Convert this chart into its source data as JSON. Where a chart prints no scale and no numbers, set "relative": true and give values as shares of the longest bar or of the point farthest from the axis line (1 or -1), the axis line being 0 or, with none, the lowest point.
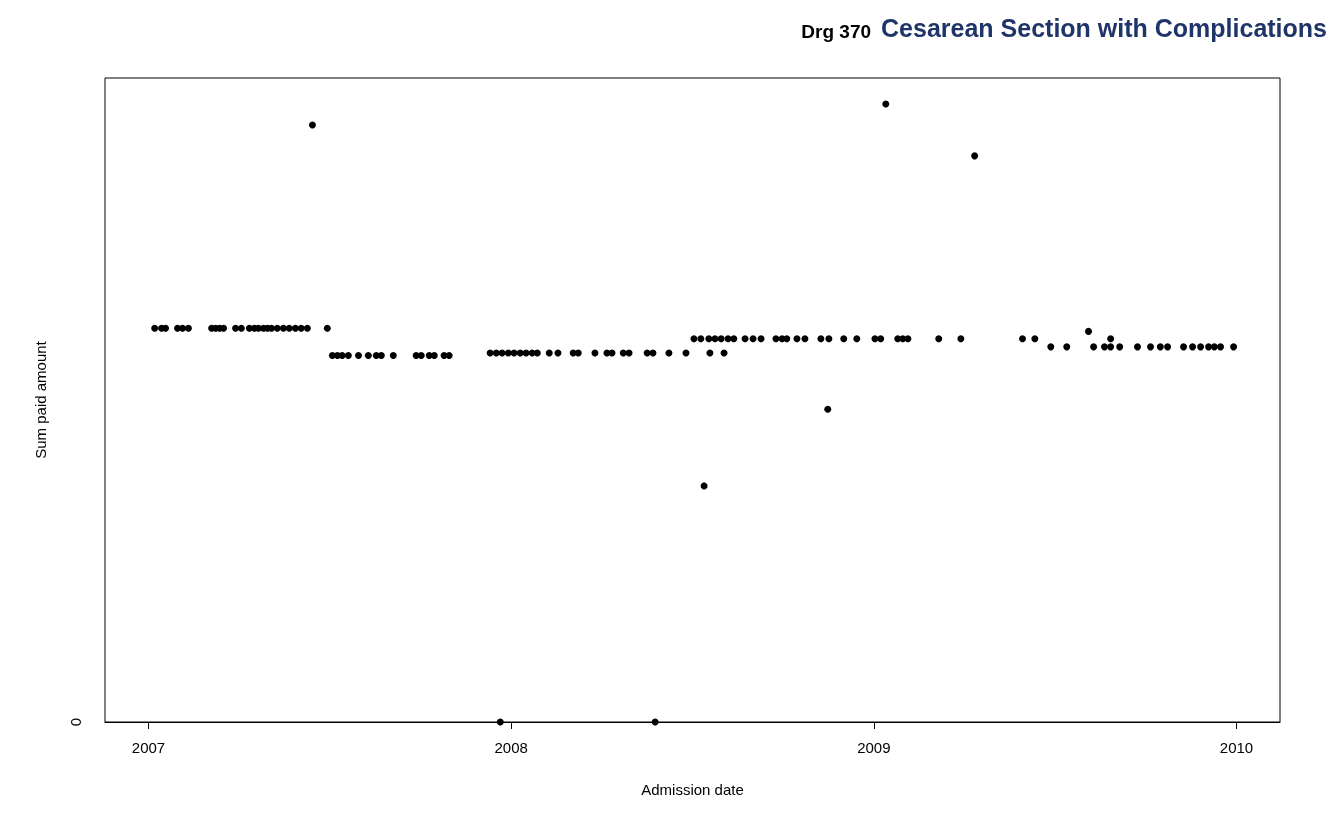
{
  "chart_data": {
    "type": "scatter",
    "title": "Drg 370",
    "subtitle": "Cesarean Section with Complications",
    "xlabel": "Admission date",
    "ylabel": "Sum paid amount",
    "relative": true,
    "marker": "circle",
    "grid": false,
    "annotations": [
      "0"
    ],
    "xlim": [
      2006.88,
      2010.12
    ],
    "xticks": [
      2007,
      2008,
      2009,
      2010
    ],
    "series": [
      {
        "color": "#000000",
        "x": [
          2007.017,
          2007.036,
          2007.047,
          2007.08,
          2007.094,
          2007.11,
          2007.174,
          2007.185,
          2007.196,
          2007.207,
          2007.24,
          2007.256,
          2007.278,
          2007.292,
          2007.303,
          2007.317,
          2007.328,
          2007.339,
          2007.355,
          2007.372,
          2007.388,
          2007.405,
          2007.421,
          2007.438,
          2007.493,
          2007.507,
          2007.521,
          2007.534,
          2007.551,
          2007.579,
          2007.606,
          2007.628,
          2007.642,
          2007.675,
          2007.738,
          2007.752,
          2007.774,
          2007.788,
          2007.815,
          2007.829,
          2007.942,
          2007.959,
          2007.975,
          2007.992,
          2008.008,
          2008.025,
          2008.041,
          2008.058,
          2008.072,
          2008.105,
          2008.129,
          2008.171,
          2008.185,
          2008.231,
          2008.264,
          2008.278,
          2008.309,
          2008.325,
          2008.375,
          2008.391,
          2008.435,
          2008.482,
          2008.548,
          2008.587,
          2008.504,
          2008.523,
          2008.545,
          2008.562,
          2008.579,
          2008.598,
          2008.614,
          2008.645,
          2008.667,
          2008.689,
          2008.73,
          2008.747,
          2008.76,
          2008.788,
          2008.81,
          2008.854,
          2008.876,
          2008.917,
          2008.953,
          2009.003,
          2009.019,
          2009.066,
          2009.08,
          2009.094,
          2009.179,
          2009.24,
          2009.41,
          2009.444,
          2009.488,
          2009.532,
          2009.606,
          2009.636,
          2009.653,
          2009.678,
          2009.727,
          2009.763,
          2009.79,
          2009.81,
          2009.854,
          2009.879,
          2009.901,
          2009.923,
          2009.939,
          2009.956,
          2009.992,
          2009.592,
          2009.653,
          2007.452,
          2009.033,
          2009.278,
          2008.873,
          2008.532,
          2007.97,
          2008.397
        ],
        "values": [
          0.637,
          0.637,
          0.637,
          0.637,
          0.637,
          0.637,
          0.637,
          0.637,
          0.637,
          0.637,
          0.637,
          0.637,
          0.637,
          0.637,
          0.637,
          0.637,
          0.637,
          0.637,
          0.637,
          0.637,
          0.637,
          0.637,
          0.637,
          0.637,
          0.637,
          0.593,
          0.593,
          0.593,
          0.593,
          0.593,
          0.593,
          0.593,
          0.593,
          0.593,
          0.593,
          0.593,
          0.593,
          0.593,
          0.593,
          0.593,
          0.597,
          0.597,
          0.597,
          0.597,
          0.597,
          0.597,
          0.597,
          0.597,
          0.597,
          0.597,
          0.597,
          0.597,
          0.597,
          0.597,
          0.597,
          0.597,
          0.597,
          0.597,
          0.597,
          0.597,
          0.597,
          0.597,
          0.597,
          0.597,
          0.62,
          0.62,
          0.62,
          0.62,
          0.62,
          0.62,
          0.62,
          0.62,
          0.62,
          0.62,
          0.62,
          0.62,
          0.62,
          0.62,
          0.62,
          0.62,
          0.62,
          0.62,
          0.62,
          0.62,
          0.62,
          0.62,
          0.62,
          0.62,
          0.62,
          0.62,
          0.62,
          0.62,
          0.607,
          0.607,
          0.607,
          0.607,
          0.607,
          0.607,
          0.607,
          0.607,
          0.607,
          0.607,
          0.607,
          0.607,
          0.607,
          0.607,
          0.607,
          0.607,
          0.607,
          0.632,
          0.62,
          0.966,
          1,
          0.916,
          0.506,
          0.382,
          0,
          0
        ]
      }
    ]
  }
}
